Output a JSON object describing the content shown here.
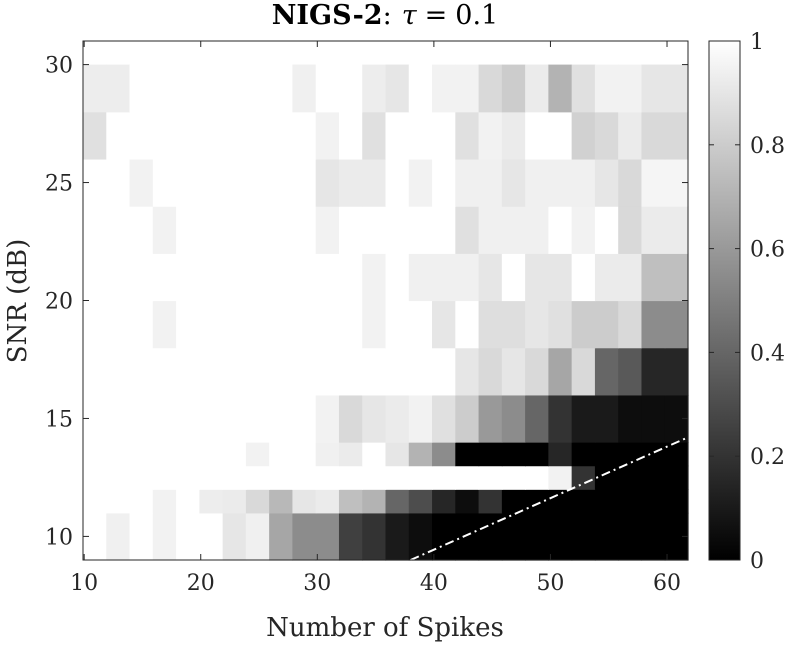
{
  "chart_data": {
    "type": "heatmap",
    "title": {
      "name": "NIGS-2",
      "separator": ":",
      "symbol": "τ",
      "equals": "=",
      "value": "0.1"
    },
    "xlabel": "Number of Spikes",
    "ylabel": "SNR (dB)",
    "x_values": [
      11,
      13,
      15,
      17,
      19,
      21,
      23,
      25,
      27,
      29,
      31,
      33,
      35,
      37,
      39,
      41,
      43,
      45,
      47,
      49,
      51,
      53,
      55,
      57,
      59,
      61
    ],
    "y_values": [
      10,
      11,
      12,
      13,
      14,
      15,
      16,
      17,
      18,
      19,
      20,
      21,
      22,
      23,
      24,
      25,
      26,
      27,
      28,
      29,
      30
    ],
    "xlim": [
      9.9,
      61.8
    ],
    "ylim": [
      9,
      31
    ],
    "xticks": [
      "10",
      "20",
      "30",
      "40",
      "50",
      "60"
    ],
    "xtick_values": [
      10,
      20,
      30,
      40,
      50,
      60
    ],
    "yticks": [
      "10",
      "15",
      "20",
      "25",
      "30"
    ],
    "ytick_values": [
      10,
      15,
      20,
      25,
      30
    ],
    "colorbar": {
      "range": [
        0,
        1
      ],
      "ticks": [
        "0",
        "0.2",
        "0.4",
        "0.6",
        "0.8",
        "1"
      ],
      "tick_values": [
        0,
        0.2,
        0.4,
        0.6,
        0.8,
        1
      ],
      "colormap": "gray"
    },
    "values": [
      [
        1,
        0.94,
        1,
        0.95,
        1,
        1,
        0.9,
        0.94,
        0.65,
        0.55,
        0.55,
        0.25,
        0.2,
        0.1,
        0.05,
        0,
        0,
        0,
        0,
        0,
        0,
        0,
        0,
        0,
        0,
        0
      ],
      [
        1,
        1,
        1,
        0.95,
        1,
        0.93,
        0.92,
        0.85,
        0.72,
        0.9,
        0.92,
        0.75,
        0.7,
        0.4,
        0.3,
        0.15,
        0.05,
        0.2,
        0,
        0,
        0,
        0,
        0,
        0,
        0,
        0
      ],
      [
        1,
        1,
        1,
        1,
        1,
        1,
        1,
        1,
        1,
        1,
        1,
        1,
        1,
        1,
        1,
        1,
        1,
        1,
        1,
        1,
        0.95,
        0.2,
        0,
        0,
        0,
        0
      ],
      [
        1,
        1,
        1,
        1,
        1,
        1,
        1,
        0.95,
        1,
        1,
        0.94,
        0.92,
        1,
        0.9,
        0.7,
        0.55,
        0,
        0,
        0,
        0,
        0.15,
        0,
        0,
        0,
        0,
        0
      ],
      [
        1,
        1,
        1,
        1,
        1,
        1,
        1,
        1,
        1,
        1,
        0.95,
        0.85,
        0.9,
        0.92,
        0.95,
        0.88,
        0.8,
        0.6,
        0.55,
        0.4,
        0.2,
        0.1,
        0.1,
        0.05,
        0.05,
        0.05
      ],
      [
        1,
        1,
        1,
        1,
        1,
        1,
        1,
        1,
        1,
        1,
        1,
        1,
        1,
        1,
        1,
        1,
        0.9,
        0.85,
        0.9,
        0.85,
        0.65,
        0.85,
        0.4,
        0.35,
        0.15,
        0.15
      ],
      [
        1,
        1,
        1,
        0.95,
        1,
        1,
        1,
        1,
        1,
        1,
        1,
        1,
        0.95,
        1,
        1,
        0.9,
        1,
        0.87,
        0.87,
        0.9,
        0.88,
        0.8,
        0.8,
        0.85,
        0.55,
        0.55
      ],
      [
        1,
        1,
        1,
        1,
        1,
        1,
        1,
        1,
        1,
        1,
        1,
        1,
        0.95,
        1,
        0.94,
        0.94,
        0.94,
        0.9,
        1,
        0.9,
        0.9,
        1,
        0.92,
        0.92,
        0.75,
        0.75
      ],
      [
        1,
        1,
        1,
        0.95,
        1,
        1,
        1,
        1,
        1,
        1,
        0.95,
        1,
        1,
        1,
        1,
        1,
        0.88,
        0.94,
        0.94,
        0.94,
        1,
        0.95,
        1,
        0.85,
        0.92,
        0.92
      ],
      [
        1,
        1,
        0.95,
        1,
        1,
        1,
        1,
        1,
        1,
        1,
        0.9,
        0.92,
        0.92,
        1,
        0.95,
        1,
        0.94,
        0.94,
        0.9,
        0.94,
        0.94,
        0.94,
        0.9,
        0.85,
        0.96,
        0.96
      ],
      [
        0.88,
        1,
        1,
        1,
        1,
        1,
        1,
        1,
        1,
        1,
        0.95,
        1,
        0.88,
        1,
        1,
        1,
        0.88,
        0.95,
        0.92,
        1,
        1,
        0.82,
        0.85,
        0.92,
        0.85,
        0.85
      ],
      [
        0.93,
        0.93,
        1,
        1,
        1,
        1,
        1,
        1,
        1,
        0.94,
        1,
        1,
        0.93,
        0.9,
        1,
        0.95,
        0.95,
        0.85,
        0.8,
        0.92,
        0.7,
        0.88,
        0.95,
        0.95,
        0.9,
        0.9
      ]
    ],
    "row_heights": [
      2,
      1,
      1,
      1,
      2,
      2,
      2,
      2,
      2,
      2,
      2,
      2
    ],
    "boundary_line": {
      "x": [
        38,
        61.8
      ],
      "y": [
        9,
        14.2
      ],
      "style": "dash-dot",
      "color": "#ffffff"
    }
  }
}
